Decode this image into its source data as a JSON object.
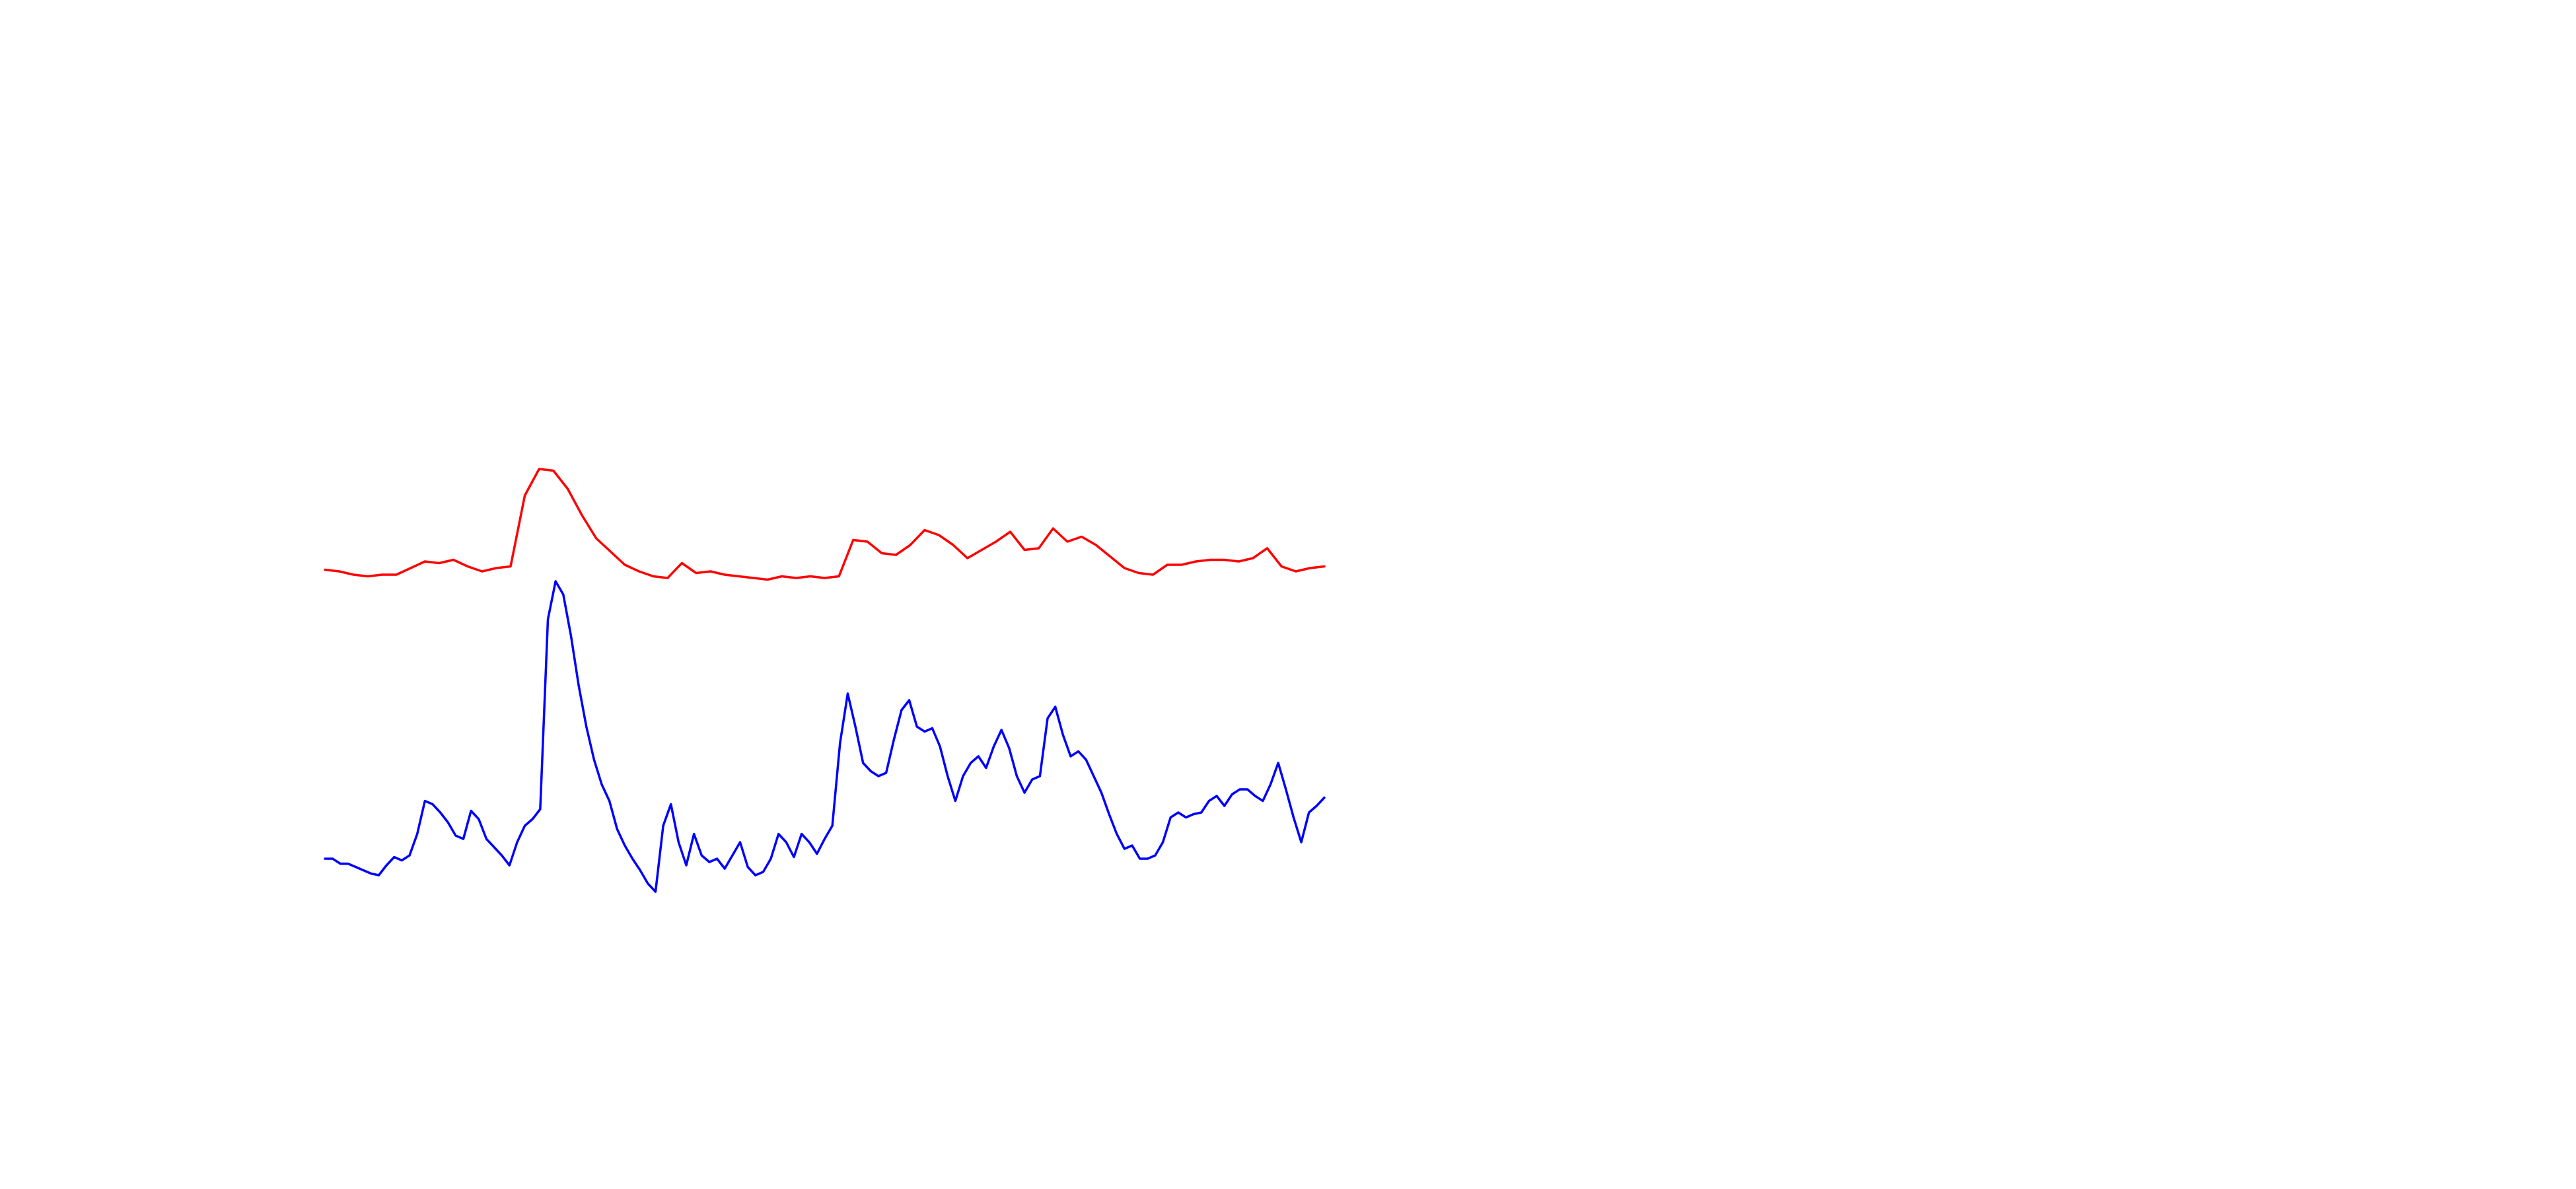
{
  "chart_data": {
    "type": "line",
    "ylim": [
      0,
      300
    ],
    "series": [
      {
        "color": "#ff0000",
        "values": [
          215,
          214,
          212,
          211,
          212,
          212,
          216,
          220,
          219,
          221,
          217,
          214,
          216,
          217,
          260,
          276,
          275,
          264,
          248,
          234,
          226,
          218,
          214,
          211,
          210,
          219,
          213,
          214,
          212,
          211,
          210,
          209,
          211,
          210,
          211,
          210,
          211,
          233,
          232,
          225,
          224,
          230,
          239,
          236,
          230,
          222,
          227,
          232,
          238,
          227,
          228,
          240,
          232,
          235,
          230,
          223,
          216,
          213,
          212,
          218,
          218,
          220,
          221,
          221,
          220,
          222,
          228,
          217,
          214,
          216,
          217
        ]
      },
      {
        "color": "#0000ff",
        "values": [
          40,
          40,
          37,
          37,
          35,
          33,
          31,
          30,
          36,
          41,
          39,
          42,
          55,
          75,
          73,
          68,
          62,
          54,
          52,
          69,
          64,
          52,
          47,
          42,
          36,
          50,
          60,
          64,
          70,
          185,
          208,
          200,
          175,
          145,
          120,
          100,
          85,
          75,
          58,
          48,
          40,
          33,
          25,
          20,
          60,
          73,
          50,
          36,
          55,
          42,
          38,
          40,
          34,
          42,
          50,
          35,
          30,
          32,
          40,
          55,
          50,
          41,
          55,
          50,
          43,
          52,
          60,
          110,
          140,
          120,
          98,
          93,
          90,
          92,
          112,
          130,
          136,
          120,
          117,
          119,
          108,
          90,
          75,
          90,
          98,
          102,
          95,
          108,
          118,
          107,
          90,
          80,
          88,
          90,
          125,
          132,
          115,
          102,
          105,
          100,
          90,
          80,
          67,
          55,
          46,
          48,
          40,
          40,
          42,
          50,
          65,
          68,
          65,
          67,
          68,
          75,
          78,
          72,
          79,
          82,
          82,
          78,
          75,
          85,
          98,
          82,
          65,
          50,
          68,
          72,
          77
        ]
      }
    ]
  }
}
